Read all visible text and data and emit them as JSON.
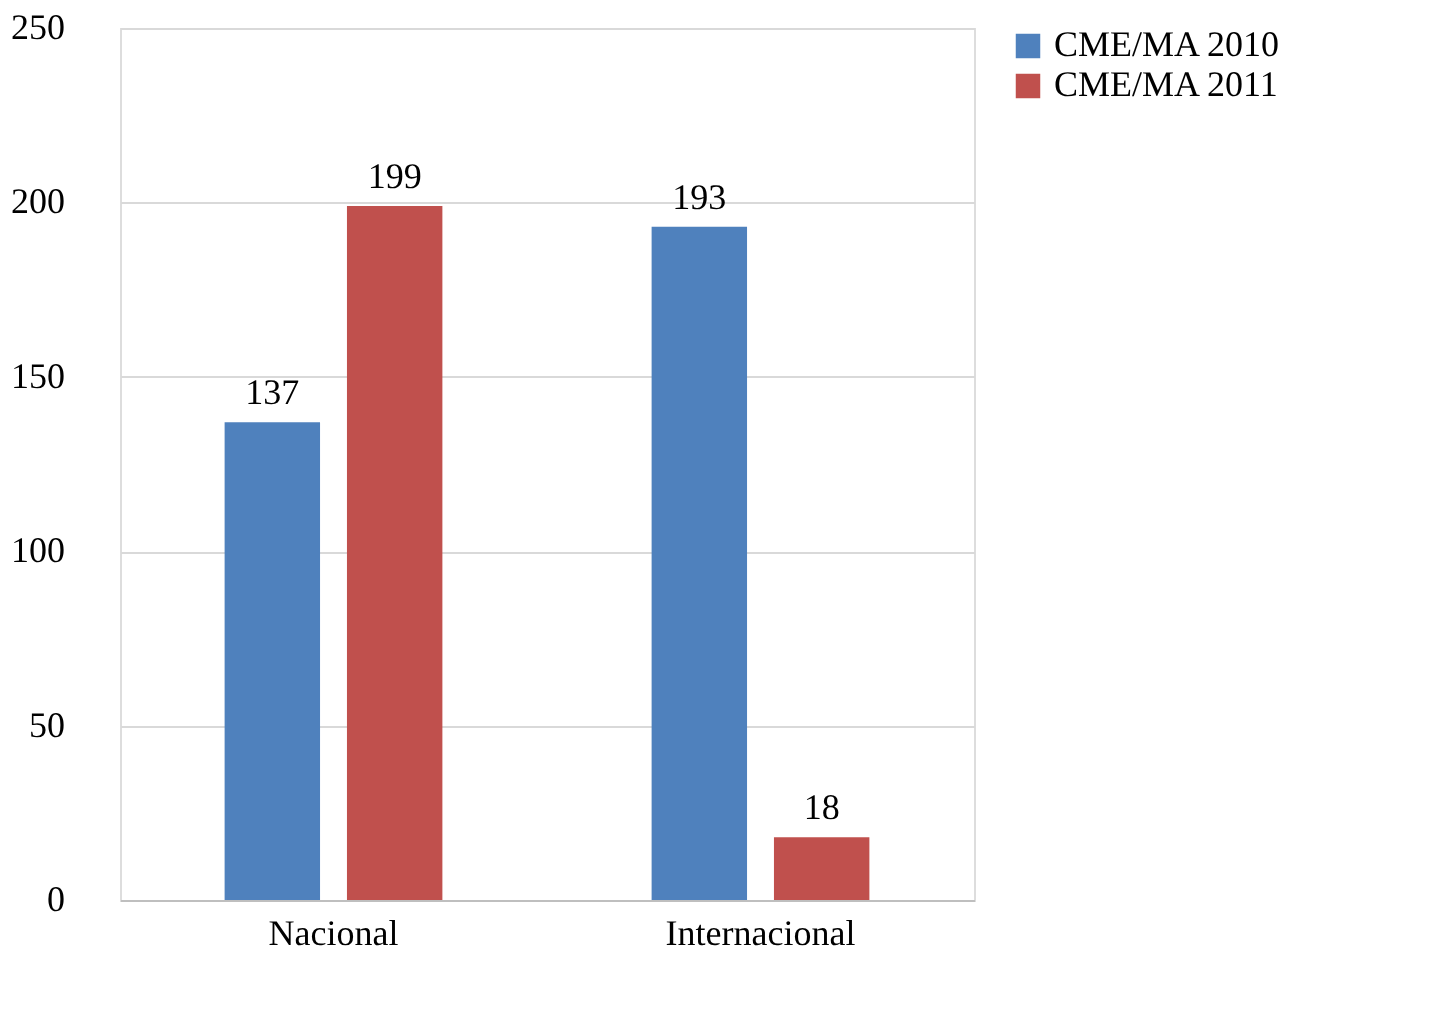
{
  "chart_data": {
    "type": "bar",
    "categories": [
      "Nacional",
      "Internacional"
    ],
    "series": [
      {
        "name": "CME/MA 2010",
        "color": "#4f81bd",
        "values": [
          137,
          193
        ]
      },
      {
        "name": "CME/MA 2011",
        "color": "#c0504d",
        "values": [
          199,
          18
        ]
      }
    ],
    "ylim": [
      0,
      250
    ],
    "yticks": [
      0,
      50,
      100,
      150,
      200,
      250
    ],
    "grid": "y",
    "legend": "right",
    "data_labels": true
  }
}
